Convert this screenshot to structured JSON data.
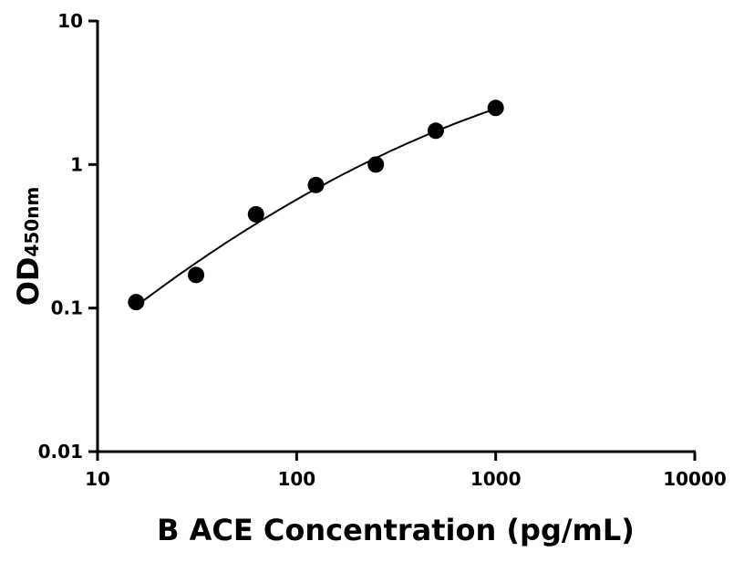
{
  "chart_data": {
    "type": "scatter",
    "xlabel": "B ACE Concentration (pg/mL)",
    "ylabel": "OD",
    "ylabel_subscript": "450nm",
    "x_scale": "log",
    "y_scale": "log",
    "xlim": [
      10,
      10000
    ],
    "ylim": [
      0.01,
      10
    ],
    "x_ticks": [
      "10",
      "100",
      "1000",
      "10000"
    ],
    "y_ticks": [
      "0.01",
      "0.1",
      "1",
      "10"
    ],
    "grid": false,
    "fit_line": true,
    "marker_color": "#000000",
    "x": [
      15.625,
      31.25,
      62.5,
      125,
      250,
      500,
      1000
    ],
    "y": [
      0.11,
      0.17,
      0.45,
      0.72,
      1.0,
      1.72,
      2.48
    ]
  }
}
